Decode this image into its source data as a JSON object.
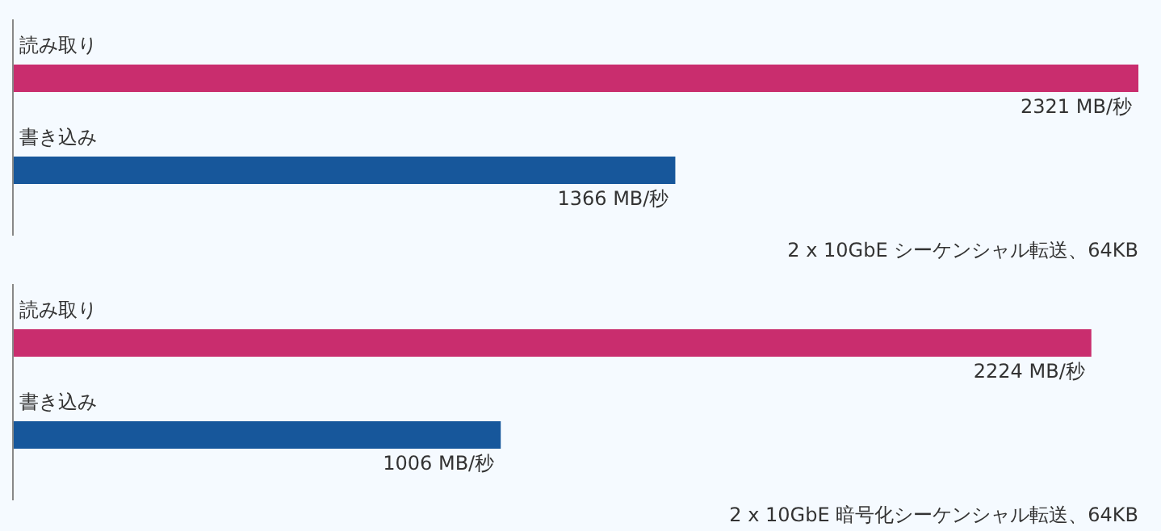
{
  "chart_data": [
    {
      "type": "bar",
      "orientation": "horizontal",
      "categories": [
        "読み取り",
        "書き込み"
      ],
      "values": [
        2321,
        1366
      ],
      "colors": [
        "#c92d6e",
        "#17579b"
      ],
      "value_labels": [
        "2321 MB/秒",
        "1366 MB/秒"
      ],
      "tick_labels": "y",
      "annotations": [
        "2 x 10GbE シーケンシャル転送、64KB"
      ]
    },
    {
      "type": "bar",
      "orientation": "horizontal",
      "categories": [
        "読み取り",
        "書き込み"
      ],
      "values": [
        2224,
        1006
      ],
      "colors": [
        "#c92d6e",
        "#17579b"
      ],
      "value_labels": [
        "2224 MB/秒",
        "1006 MB/秒"
      ],
      "tick_labels": "y",
      "annotations": [
        "2 x 10GbE 暗号化シーケンシャル転送、64KB"
      ]
    }
  ]
}
